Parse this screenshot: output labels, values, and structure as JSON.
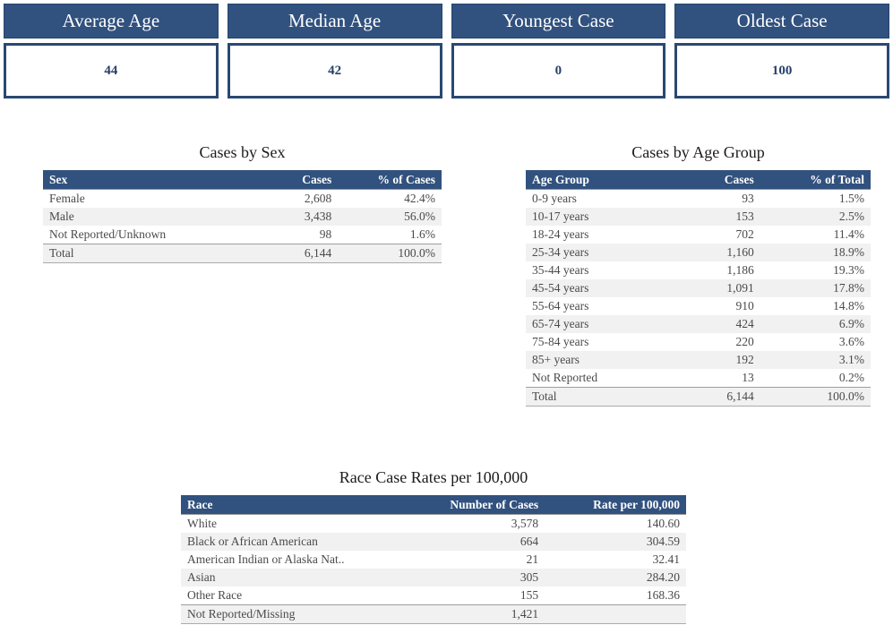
{
  "colors": {
    "navy": "#31517E",
    "navy_dark_border": "#26456F",
    "card_value_border": "#2A4872",
    "card_value_text": "#27406B",
    "row_text": "#4A4A4A",
    "band_gray": "#F1F1F1",
    "header_text": "#FFFFFF"
  },
  "cards": [
    {
      "label": "Average Age",
      "value": "44"
    },
    {
      "label": "Median Age",
      "value": "42"
    },
    {
      "label": "Youngest Case",
      "value": "0"
    },
    {
      "label": "Oldest Case",
      "value": "100"
    }
  ],
  "tables": {
    "sex": {
      "title": "Cases by Sex",
      "columns": [
        "Sex",
        "Cases",
        "% of Cases"
      ],
      "rows": [
        [
          "Female",
          "2,608",
          "42.4%"
        ],
        [
          "Male",
          "3,438",
          "56.0%"
        ],
        [
          "Not Reported/Unknown",
          "98",
          "1.6%"
        ],
        [
          "Total",
          "6,144",
          "100.0%"
        ]
      ]
    },
    "age": {
      "title": "Cases by Age Group",
      "columns": [
        "Age Group",
        "Cases",
        "% of Total"
      ],
      "rows": [
        [
          "0-9 years",
          "93",
          "1.5%"
        ],
        [
          "10-17 years",
          "153",
          "2.5%"
        ],
        [
          "18-24 years",
          "702",
          "11.4%"
        ],
        [
          "25-34 years",
          "1,160",
          "18.9%"
        ],
        [
          "35-44 years",
          "1,186",
          "19.3%"
        ],
        [
          "45-54 years",
          "1,091",
          "17.8%"
        ],
        [
          "55-64 years",
          "910",
          "14.8%"
        ],
        [
          "65-74 years",
          "424",
          "6.9%"
        ],
        [
          "75-84 years",
          "220",
          "3.6%"
        ],
        [
          "85+ years",
          "192",
          "3.1%"
        ],
        [
          "Not Reported",
          "13",
          "0.2%"
        ],
        [
          "Total",
          "6,144",
          "100.0%"
        ]
      ]
    },
    "race": {
      "title": "Race Case Rates per 100,000",
      "columns": [
        "Race",
        "Number of Cases",
        "Rate per 100,000"
      ],
      "rows": [
        [
          "White",
          "3,578",
          "140.60"
        ],
        [
          "Black or African American",
          "664",
          "304.59"
        ],
        [
          "American Indian or Alaska Nat..",
          "21",
          "32.41"
        ],
        [
          "Asian",
          "305",
          "284.20"
        ],
        [
          "Other Race",
          "155",
          "168.36"
        ],
        [
          "Not Reported/Missing",
          "1,421",
          ""
        ]
      ]
    }
  },
  "chart_data": [
    {
      "type": "kpi",
      "items": [
        {
          "label": "Average Age",
          "value": 44
        },
        {
          "label": "Median Age",
          "value": 42
        },
        {
          "label": "Youngest Case",
          "value": 0
        },
        {
          "label": "Oldest Case",
          "value": 100
        }
      ]
    },
    {
      "type": "table",
      "title": "Cases by Sex",
      "columns": [
        "Sex",
        "Cases",
        "% of Cases"
      ],
      "rows": [
        [
          "Female",
          2608,
          "42.4%"
        ],
        [
          "Male",
          3438,
          "56.0%"
        ],
        [
          "Not Reported/Unknown",
          98,
          "1.6%"
        ],
        [
          "Total",
          6144,
          "100.0%"
        ]
      ]
    },
    {
      "type": "table",
      "title": "Cases by Age Group",
      "columns": [
        "Age Group",
        "Cases",
        "% of Total"
      ],
      "rows": [
        [
          "0-9 years",
          93,
          "1.5%"
        ],
        [
          "10-17 years",
          153,
          "2.5%"
        ],
        [
          "18-24 years",
          702,
          "11.4%"
        ],
        [
          "25-34 years",
          1160,
          "18.9%"
        ],
        [
          "35-44 years",
          1186,
          "19.3%"
        ],
        [
          "45-54 years",
          1091,
          "17.8%"
        ],
        [
          "55-64 years",
          910,
          "14.8%"
        ],
        [
          "65-74 years",
          424,
          "6.9%"
        ],
        [
          "75-84 years",
          220,
          "3.6%"
        ],
        [
          "85+ years",
          192,
          "3.1%"
        ],
        [
          "Not Reported",
          13,
          "0.2%"
        ],
        [
          "Total",
          6144,
          "100.0%"
        ]
      ]
    },
    {
      "type": "table",
      "title": "Race Case Rates per 100,000",
      "columns": [
        "Race",
        "Number of Cases",
        "Rate per 100,000"
      ],
      "rows": [
        [
          "White",
          3578,
          140.6
        ],
        [
          "Black or African American",
          664,
          304.59
        ],
        [
          "American Indian or Alaska Nat..",
          21,
          32.41
        ],
        [
          "Asian",
          305,
          284.2
        ],
        [
          "Other Race",
          155,
          168.36
        ],
        [
          "Not Reported/Missing",
          1421,
          null
        ]
      ]
    }
  ]
}
